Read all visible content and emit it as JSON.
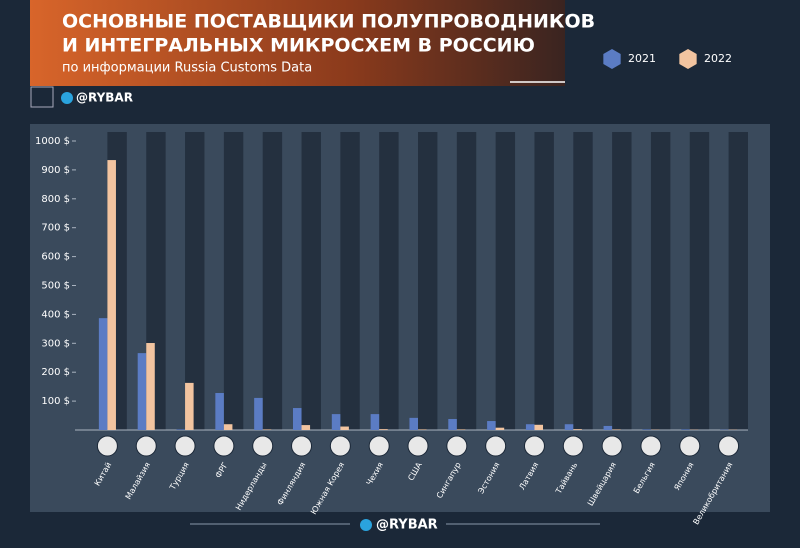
{
  "brand": "@RYBAR",
  "chart_data": {
    "type": "bar",
    "title": [
      "ОСНОВНЫЕ ПОСТАВЩИКИ ПОЛУПРОВОДНИКОВ",
      "И ИНТЕГРАЛЬНЫХ МИКРОСХЕМ В РОССИЮ"
    ],
    "subtitle": "по информации Russia Customs Data",
    "categories": [
      "Китай",
      "Малайзия",
      "Турция",
      "ФРГ",
      "Нидерланды",
      "Финляндия",
      "Южная Корея",
      "Чехия",
      "США",
      "Сингапур",
      "Эстония",
      "Латвия",
      "Тайвань",
      "Швейцария",
      "Бельгия",
      "Япония",
      "Великобритания"
    ],
    "series": [
      {
        "name": "2021",
        "color": "#5b7cc4",
        "values": [
          387,
          266,
          2,
          128,
          111,
          76,
          55,
          55,
          42,
          38,
          31,
          20,
          20,
          14,
          2,
          2,
          1
        ]
      },
      {
        "name": "2022",
        "color": "#f2c4a0",
        "values": [
          934,
          301,
          163,
          20,
          2,
          17,
          12,
          3,
          2,
          2,
          8,
          18,
          3,
          2,
          1,
          1,
          1
        ]
      }
    ],
    "ylim": [
      0,
      1000
    ],
    "yticks": [
      {
        "value": 100,
        "label": "100 $"
      },
      {
        "value": 200,
        "label": "200 $"
      },
      {
        "value": 300,
        "label": "300 $"
      },
      {
        "value": 400,
        "label": "400 $"
      },
      {
        "value": 500,
        "label": "500 $"
      },
      {
        "value": 600,
        "label": "600 $"
      },
      {
        "value": 700,
        "label": "700 $"
      },
      {
        "value": 800,
        "label": "800 $"
      },
      {
        "value": 900,
        "label": "900 $"
      },
      {
        "value": 1000,
        "label": "1000 $"
      }
    ],
    "legend": "top-right"
  }
}
